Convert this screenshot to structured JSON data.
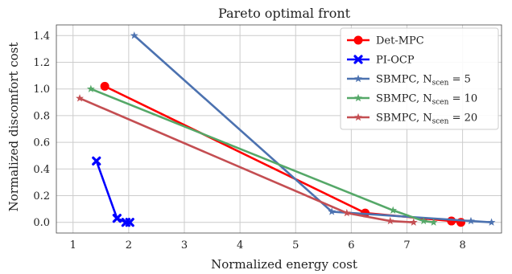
{
  "chart_data": {
    "type": "line",
    "title": "Pareto optimal front",
    "xlabel": "Normalized energy cost",
    "ylabel": "Normalized discomfort cost",
    "xlim": [
      0.7,
      8.7
    ],
    "ylim": [
      -0.08,
      1.48
    ],
    "xticks": [
      1,
      2,
      3,
      4,
      5,
      6,
      7,
      8
    ],
    "yticks": [
      0.0,
      0.2,
      0.4,
      0.6,
      0.8,
      1.0,
      1.2,
      1.4
    ],
    "grid": true,
    "legend_position": "top-right",
    "series": [
      {
        "name": "Det-MPC",
        "legend_main": "Det-MPC",
        "legend_sub": "",
        "legend_tail": "",
        "color": "#ff0000",
        "marker": "circle",
        "x": [
          1.57,
          6.25,
          7.8,
          7.97
        ],
        "y": [
          1.02,
          0.07,
          0.01,
          0.0
        ]
      },
      {
        "name": "PI-OCP",
        "legend_main": "PI-OCP",
        "legend_sub": "",
        "legend_tail": "",
        "color": "#0000ff",
        "marker": "x",
        "x": [
          1.42,
          1.79,
          1.95,
          2.02
        ],
        "y": [
          0.46,
          0.03,
          0.0,
          0.0
        ]
      },
      {
        "name": "SBMPC, N_scen = 5",
        "legend_main": "SBMPC, N",
        "legend_sub": "scen",
        "legend_tail": " = 5",
        "color": "#4c72b0",
        "marker": "star",
        "x": [
          2.1,
          5.65,
          8.15,
          8.52
        ],
        "y": [
          1.4,
          0.08,
          0.01,
          0.0
        ]
      },
      {
        "name": "SBMPC, N_scen = 10",
        "legend_main": "SBMPC, N",
        "legend_sub": "scen",
        "legend_tail": " = 10",
        "color": "#55a868",
        "marker": "star",
        "x": [
          1.32,
          6.75,
          7.3,
          7.48
        ],
        "y": [
          1.0,
          0.09,
          0.01,
          0.0
        ]
      },
      {
        "name": "SBMPC, N_scen = 20",
        "legend_main": "SBMPC, N",
        "legend_sub": "scen",
        "legend_tail": " = 20",
        "color": "#c44e52",
        "marker": "star",
        "x": [
          1.12,
          5.92,
          6.7,
          7.12
        ],
        "y": [
          0.93,
          0.07,
          0.01,
          0.0
        ]
      }
    ]
  }
}
